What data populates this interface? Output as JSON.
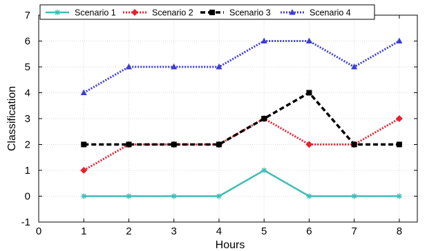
{
  "chart_data": {
    "type": "line",
    "title": "",
    "xlabel": "Hours",
    "ylabel": "Classification",
    "xlim": [
      0,
      8.4
    ],
    "ylim": [
      -1,
      7
    ],
    "x_ticks": [
      0,
      1,
      2,
      3,
      4,
      5,
      6,
      7,
      8
    ],
    "y_ticks": [
      -1,
      0,
      1,
      2,
      3,
      4,
      5,
      6,
      7
    ],
    "x": [
      1,
      2,
      3,
      4,
      5,
      6,
      7,
      8
    ],
    "grid": true,
    "legend_position": "top",
    "series": [
      {
        "name": "Scenario 1",
        "values": [
          0,
          0,
          0,
          0,
          1,
          0,
          0,
          0
        ],
        "color": "#3fbcb6",
        "line_style": "solid",
        "marker": "star"
      },
      {
        "name": "Scenario 2",
        "values": [
          1,
          2,
          2,
          2,
          3,
          2,
          2,
          3
        ],
        "color": "#e8202e",
        "line_style": "dotted",
        "marker": "diamond"
      },
      {
        "name": "Scenario 3",
        "values": [
          2,
          2,
          2,
          2,
          3,
          4,
          2,
          2
        ],
        "color": "#000000",
        "line_style": "dashed",
        "marker": "square"
      },
      {
        "name": "Scenario 4",
        "values": [
          4,
          5,
          5,
          5,
          6,
          6,
          5,
          6
        ],
        "color": "#3b3bd6",
        "line_style": "dotted",
        "marker": "triangle"
      }
    ]
  }
}
